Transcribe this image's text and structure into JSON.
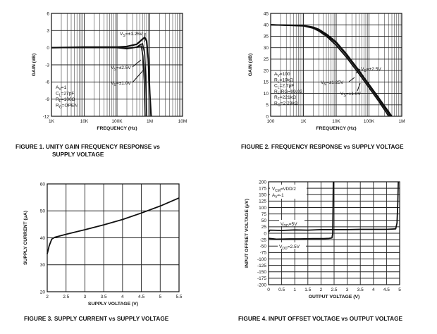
{
  "captions": {
    "fig1": "FIGURE 1.  UNITY GAIN FREQUENCY RESPONSE vs",
    "fig1b": "SUPPLY VOLTAGE",
    "fig2": "FIGURE 2.  FREQUENCY RESPONSE vs SUPPLY VOLTAGE",
    "fig3": "FIGURE 3.  SUPPLY CURRENT vs SUPPLY VOLTAGE",
    "fig4": "FIGURE 4.  INPUT OFFSET VOLTAGE vs OUTPUT VOLTAGE"
  },
  "colors": {
    "ink": "#111111",
    "grid": "#222222",
    "background": "#ffffff"
  },
  "chart_data": [
    {
      "id": "fig1",
      "type": "line",
      "xscale": "log",
      "xlim": [
        1000,
        10000000
      ],
      "ylim": [
        -12,
        6
      ],
      "xticks": [
        1000,
        10000,
        100000,
        1000000,
        10000000
      ],
      "xticklabels": [
        "1K",
        "10K",
        "100K",
        "1M",
        "10M"
      ],
      "yticks": [
        -12,
        -9,
        -6,
        -3,
        0,
        3,
        6
      ],
      "yticklabels": [
        "-12",
        "-9",
        "-6",
        "-3",
        "0",
        "3",
        "6"
      ],
      "xlabel": "FREQUENCY (Hz)",
      "ylabel": "GAIN (dB)",
      "grid": "log-minor",
      "series": [
        {
          "name": "VS=±1.25V",
          "x": [
            1000,
            3000,
            10000,
            30000,
            100000,
            200000,
            400000,
            600000,
            700000,
            800000,
            900000,
            1000000,
            1100000
          ],
          "y": [
            0,
            0.05,
            0.1,
            0.1,
            0.1,
            0.2,
            0.6,
            1.5,
            1.8,
            1.2,
            -2,
            -8,
            -12
          ]
        },
        {
          "name": "VS=±2.5V",
          "x": [
            1000,
            10000,
            100000,
            200000,
            400000,
            500000,
            600000,
            700000,
            750000,
            800000
          ],
          "y": [
            0,
            0,
            0,
            -0.1,
            0.1,
            0.5,
            0.7,
            -1,
            -5,
            -12
          ]
        },
        {
          "name": "VS=±1.0V",
          "x": [
            1000,
            10000,
            100000,
            200000,
            400000,
            550000,
            620000,
            680000,
            720000
          ],
          "y": [
            0,
            0,
            0,
            -0.2,
            0.1,
            0.3,
            -1.5,
            -6,
            -12
          ]
        }
      ],
      "annotations": [
        "VS=±1.25V",
        "VS=±2.5V",
        "VS=±1.0V"
      ],
      "conditions": [
        "AV=1",
        "CL=27pF",
        "RF=100Ω",
        "RG=OPEN"
      ]
    },
    {
      "id": "fig2",
      "type": "line",
      "xscale": "log",
      "xlim": [
        100,
        1000000
      ],
      "ylim": [
        0,
        45
      ],
      "xticks": [
        100,
        1000,
        10000,
        100000,
        1000000
      ],
      "xticklabels": [
        "100",
        "1K",
        "10K",
        "100K",
        "1M"
      ],
      "yticks": [
        0,
        5,
        10,
        15,
        20,
        25,
        30,
        35,
        40,
        45
      ],
      "yticklabels": [
        "0",
        "5",
        "10",
        "15",
        "20",
        "25",
        "30",
        "35",
        "40",
        "45"
      ],
      "xlabel": "FREQUENCY (Hz)",
      "ylabel": "GAIN (dB)",
      "grid": "log-minor",
      "series": [
        {
          "name": "VS=±2.5V",
          "x": [
            100,
            1000,
            2000,
            3000,
            5000,
            10000,
            20000,
            50000,
            100000,
            200000,
            500000
          ],
          "y": [
            40,
            39.7,
            39,
            38,
            36,
            32.5,
            27.5,
            20,
            14,
            8,
            0
          ]
        },
        {
          "name": "VS=±1.25V",
          "x": [
            100,
            1000,
            2000,
            3000,
            5000,
            10000,
            20000,
            50000,
            100000,
            200000,
            450000
          ],
          "y": [
            40,
            39.6,
            38.8,
            37.6,
            35.5,
            32,
            27,
            19.5,
            13.5,
            7.5,
            0
          ]
        },
        {
          "name": "VS=±1.0V",
          "x": [
            100,
            1000,
            2000,
            3000,
            5000,
            10000,
            20000,
            50000,
            100000,
            200000,
            400000
          ],
          "y": [
            40,
            39.5,
            38.5,
            37.2,
            35,
            31,
            26,
            18.5,
            12.5,
            6.5,
            0
          ]
        }
      ],
      "annotations": [
        "VS=±2.5V",
        "VS=±1.25V",
        "VS=±1.0V"
      ],
      "conditions": [
        "AV=100",
        "RL=10kΩ",
        "CL=2.7pF",
        "RF/RG=99.02",
        "RF=221kΩ",
        "RG=2.23kΩ"
      ]
    },
    {
      "id": "fig3",
      "type": "line",
      "xlim": [
        2,
        5.5
      ],
      "ylim": [
        20,
        60
      ],
      "xticks": [
        2,
        2.5,
        3,
        3.5,
        4,
        4.5,
        5,
        5.5
      ],
      "xticklabels": [
        "2",
        "2.5",
        "3",
        "3.5",
        "4",
        "4.5",
        "5",
        "5.5"
      ],
      "yticks": [
        20,
        30,
        40,
        50,
        60
      ],
      "yticklabels": [
        "20",
        "30",
        "40",
        "50",
        "60"
      ],
      "xlabel": "SUPPLY VOLTAGE (V)",
      "ylabel": "SUPPLY CURRENT (μA)",
      "grid": true,
      "series": [
        {
          "name": "",
          "x": [
            2,
            2.05,
            2.12,
            2.2,
            2.5,
            3,
            3.5,
            4,
            4.5,
            5,
            5.5
          ],
          "y": [
            34,
            37,
            39.5,
            40.2,
            41.3,
            43,
            44.8,
            46.8,
            49.2,
            51.8,
            54.8
          ]
        }
      ]
    },
    {
      "id": "fig4",
      "type": "line",
      "xlim": [
        0,
        5
      ],
      "ylim": [
        -200,
        200
      ],
      "xticks": [
        0,
        0.5,
        1,
        1.5,
        2,
        2.5,
        3,
        3.5,
        4,
        4.5,
        5
      ],
      "xticklabels": [
        "0",
        "0.5",
        "1",
        "1.5",
        "2",
        "2.5",
        "3",
        "3.5",
        "4",
        "4.5",
        "5"
      ],
      "yticks": [
        -200,
        -175,
        -150,
        -125,
        -100,
        -75,
        -50,
        -25,
        0,
        25,
        50,
        75,
        100,
        125,
        150,
        175,
        200
      ],
      "yticklabels": [
        "-200",
        "-175",
        "-150",
        "-125",
        "-100",
        "-75",
        "-50",
        "-25",
        "0",
        "25",
        "50",
        "75",
        "100",
        "125",
        "150",
        "175",
        "200"
      ],
      "xlabel": "OUTPUT VOLTAGE (V)",
      "ylabel": "INPUT OFFSET VOLTAGE (μV)",
      "grid": true,
      "series": [
        {
          "name": "VDD=5V",
          "x": [
            0,
            0.05,
            0.5,
            1,
            1.5,
            2,
            2.5,
            3,
            3.5,
            4,
            4.5,
            4.85,
            4.9,
            4.93,
            4.95
          ],
          "y": [
            5,
            12,
            11,
            13,
            12,
            14,
            14,
            14,
            15,
            15,
            15,
            17,
            40,
            120,
            200
          ]
        },
        {
          "name": "VDD=2.5V",
          "x": [
            0,
            0.3,
            0.8,
            1.2,
            1.7,
            2.1,
            2.3,
            2.42,
            2.45,
            2.47
          ],
          "y": [
            -20,
            -23,
            -22,
            -22,
            -21,
            -21,
            -20,
            -18,
            0,
            200
          ]
        }
      ],
      "conditions": [
        "VCM=VDD/2",
        "AV=-1"
      ]
    }
  ]
}
